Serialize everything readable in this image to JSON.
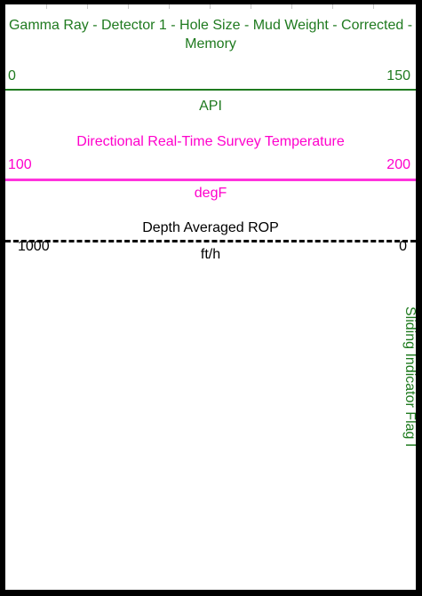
{
  "gamma_ray": {
    "title": "Gamma Ray - Detector 1 - Hole Size - Mud Weight - Corrected - Memory",
    "scale_min": "0",
    "scale_max": "150",
    "unit": "API",
    "color": "#1f7a1f"
  },
  "temperature": {
    "title": "Directional Real-Time Survey Temperature",
    "scale_min": "100",
    "scale_max": "200",
    "unit": "degF",
    "color": "#ff00cc"
  },
  "rop": {
    "title": "Depth Averaged ROP",
    "scale_min": "1000",
    "scale_max": "0",
    "unit": "ft/h",
    "color": "#000000"
  },
  "sliding_flag": {
    "label": "Sliding Indicator Flag I",
    "color": "#1f7a1f"
  }
}
